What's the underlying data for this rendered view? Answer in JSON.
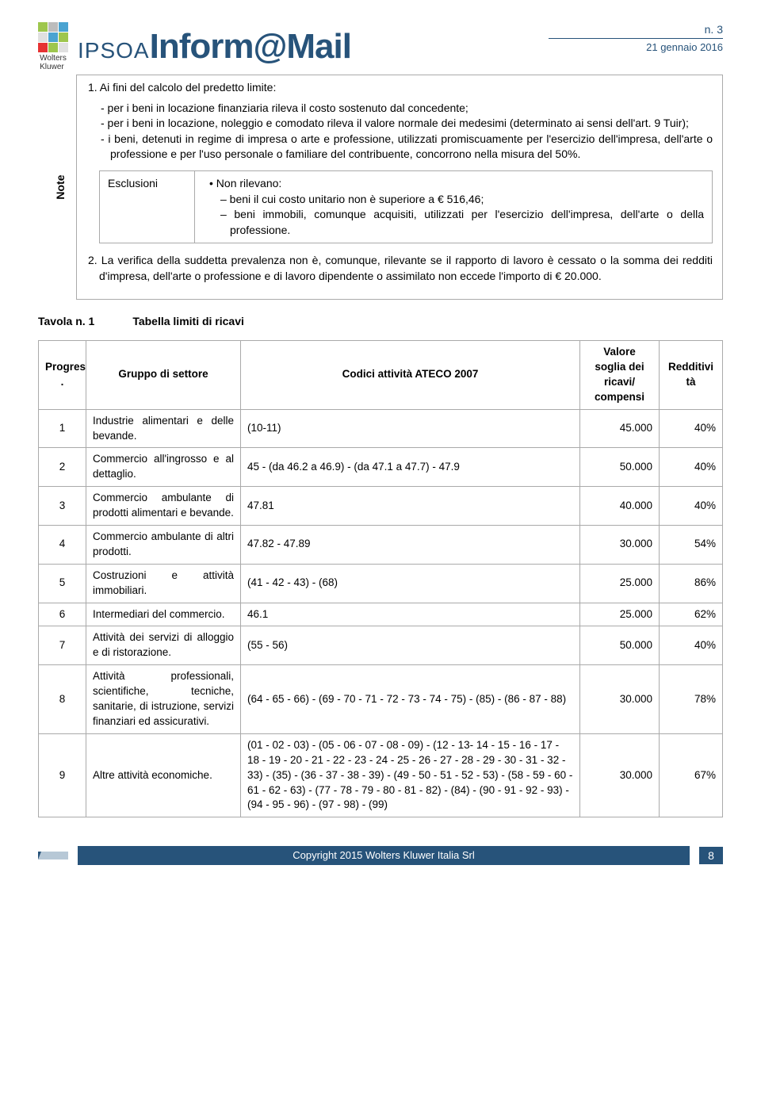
{
  "header": {
    "wk_line1": "Wolters",
    "wk_line2": "Kluwer",
    "logo_colors": [
      "#9ec64d",
      "#bcbcbc",
      "#4aa3d1",
      "#e0e0e0",
      "#4aa3d1",
      "#9ec64d",
      "#e63333",
      "#9ec64d",
      "#e0e0e0"
    ],
    "brand1": "IPSOA",
    "brand2": "Inform@Mail",
    "issue": "n. 3",
    "date": "21 gennaio 2016"
  },
  "note": {
    "side_label": "Note",
    "para1_lead": "1. Ai fini del calcolo del predetto limite:",
    "para1_b1": "- per i beni in locazione finanziaria rileva il costo sostenuto dal concedente;",
    "para1_b2": "- per i beni in locazione, noleggio e comodato rileva il valore normale dei medesimi (determinato ai sensi dell'art. 9 Tuir);",
    "para1_b3": "- i beni, detenuti in regime di impresa o arte e professione, utilizzati promiscuamente per l'esercizio dell'impresa, dell'arte o professione e per l'uso personale o familiare del contribuente, concorrono nella misura del 50%.",
    "escl_label": "Esclusioni",
    "escl_head": "Non rilevano:",
    "escl_b1": "– beni il cui costo unitario non è superiore a € 516,46;",
    "escl_b2": "– beni immobili, comunque acquisiti, utilizzati per l'esercizio dell'impresa, dell'arte o della professione.",
    "para2": "2. La verifica della suddetta prevalenza non è, comunque, rilevante se il rapporto di lavoro è cessato o la somma dei redditi d'impresa, dell'arte o professione e di lavoro dipendente o assimilato non eccede l'importo di € 20.000."
  },
  "tavola": {
    "label": "Tavola n. 1",
    "title": "Tabella limiti di ricavi"
  },
  "table": {
    "headers": {
      "progres": "Progres\n.",
      "gruppo": "Gruppo di settore",
      "codici": "Codici attività ATECO 2007",
      "valore": "Valore soglia dei ricavi/ compensi",
      "reddit": "Redditivi\ntà"
    },
    "rows": [
      {
        "n": "1",
        "g": "Industrie alimentari e delle bevande.",
        "c": "(10-11)",
        "v": "45.000",
        "r": "40%"
      },
      {
        "n": "2",
        "g": "Commercio all'ingrosso e al dettaglio.",
        "c": "45 - (da 46.2 a 46.9) - (da 47.1 a 47.7) - 47.9",
        "v": "50.000",
        "r": "40%"
      },
      {
        "n": "3",
        "g": "Commercio ambulante di prodotti alimentari e bevande.",
        "c": "47.81",
        "v": "40.000",
        "r": "40%"
      },
      {
        "n": "4",
        "g": "Commercio ambulante di altri prodotti.",
        "c": "47.82 - 47.89",
        "v": "30.000",
        "r": "54%"
      },
      {
        "n": "5",
        "g": "Costruzioni e attività immobiliari.",
        "c": "(41 - 42 - 43) - (68)",
        "v": "25.000",
        "r": "86%"
      },
      {
        "n": "6",
        "g": "Intermediari del commercio.",
        "c": "46.1",
        "v": "25.000",
        "r": "62%"
      },
      {
        "n": "7",
        "g": "Attività dei servizi di alloggio e di ristorazione.",
        "c": "(55 - 56)",
        "v": "50.000",
        "r": "40%"
      },
      {
        "n": "8",
        "g": "Attività professionali, scientifiche, tecniche, sanitarie, di istruzione, servizi finanziari ed assicurativi.",
        "c": "(64 - 65 - 66) - (69 - 70 - 71 - 72 - 73 - 74 - 75) - (85) - (86 - 87 - 88)",
        "v": "30.000",
        "r": "78%"
      },
      {
        "n": "9",
        "g": "Altre attività economiche.",
        "c": "(01 - 02 - 03) - (05 - 06 - 07 - 08 - 09) - (12 - 13- 14 - 15 - 16 - 17 - 18 - 19 - 20 - 21 - 22 - 23 - 24 - 25 - 26 - 27 - 28 - 29 - 30 - 31 - 32 - 33) - (35) - (36 - 37 - 38 - 39) - (49 - 50 - 51 - 52 - 53) - (58 - 59 - 60 - 61 - 62 - 63) - (77 - 78 - 79 - 80 - 81 - 82) - (84) - (90 - 91 - 92 - 93) - (94 - 95 - 96) - (97 - 98) - (99)",
        "v": "30.000",
        "r": "67%"
      }
    ]
  },
  "footer": {
    "copyright": "Copyright 2015 Wolters Kluwer Italia Srl",
    "page": "8"
  }
}
